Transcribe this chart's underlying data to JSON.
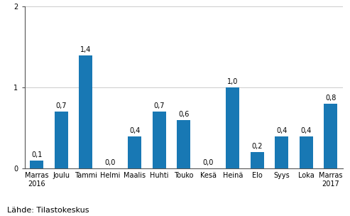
{
  "categories": [
    "Marras\n2016",
    "Joulu",
    "Tammi",
    "Helmi",
    "Maalis",
    "Huhti",
    "Touko",
    "Kesä",
    "Heinä",
    "Elo",
    "Syys",
    "Loka",
    "Marras\n2017"
  ],
  "values": [
    0.1,
    0.7,
    1.4,
    0.0,
    0.4,
    0.7,
    0.6,
    0.0,
    1.0,
    0.2,
    0.4,
    0.4,
    0.8
  ],
  "bar_color": "#1878b4",
  "ylim": [
    0,
    2
  ],
  "yticks": [
    0,
    1,
    2
  ],
  "footer": "Lähde: Tilastokeskus",
  "bar_width": 0.55,
  "label_fontsize": 7.0,
  "tick_fontsize": 7.0,
  "footer_fontsize": 8.0
}
